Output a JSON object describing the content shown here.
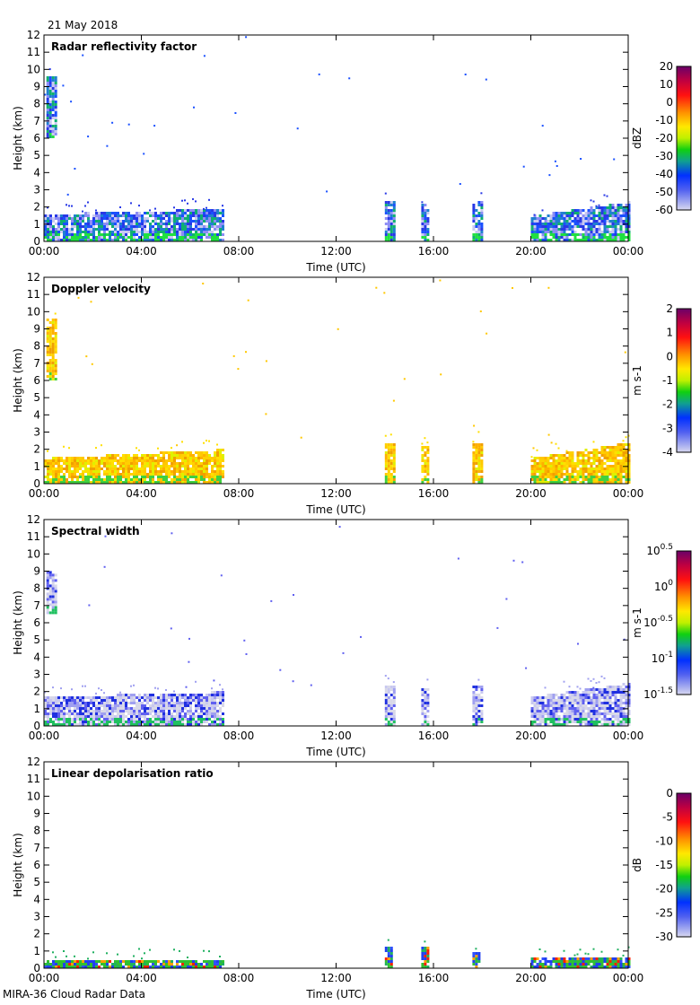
{
  "date": "21 May 2018",
  "footer": "MIRA-36 Cloud Radar Data",
  "chart_data": [
    {
      "type": "heatmap",
      "title": "Radar reflectivity factor",
      "xlabel": "Time (UTC)",
      "ylabel": "Height (km)",
      "xlim": [
        0,
        24
      ],
      "ylim": [
        0,
        12
      ],
      "xticks": [
        "00:00",
        "04:00",
        "08:00",
        "12:00",
        "16:00",
        "20:00",
        "00:00"
      ],
      "yticks": [
        "0",
        "1",
        "2",
        "3",
        "4",
        "5",
        "6",
        "7",
        "8",
        "9",
        "10",
        "11",
        "12"
      ],
      "colorbar": {
        "label": "dBZ",
        "ticks": [
          "20",
          "10",
          "0",
          "-10",
          "-20",
          "-30",
          "-40",
          "-50",
          "-60"
        ],
        "range": [
          -60,
          20
        ]
      },
      "palette": [
        "#c8c8f0",
        "#8c8cf5",
        "#2838e6",
        "#1a50ff",
        "#2080d0",
        "#10b070",
        "#20e040"
      ],
      "echoes": [
        {
          "t": [
            0,
            7.33
          ],
          "h": [
            0,
            1.5
          ],
          "h_end": 1.8
        },
        {
          "t": [
            0.1,
            0.5
          ],
          "h": [
            6,
            9.5
          ]
        },
        {
          "t": [
            14.0,
            14.35
          ],
          "h": [
            0,
            2.3
          ]
        },
        {
          "t": [
            15.5,
            15.8
          ],
          "h": [
            0,
            2.1
          ]
        },
        {
          "t": [
            17.6,
            17.95
          ],
          "h": [
            0,
            2.3
          ]
        },
        {
          "t": [
            20.0,
            24
          ],
          "h": [
            0,
            1.4
          ],
          "h_end": 2.2
        }
      ]
    },
    {
      "type": "heatmap",
      "title": "Doppler velocity",
      "xlabel": "Time (UTC)",
      "ylabel": "Height (km)",
      "xlim": [
        0,
        24
      ],
      "ylim": [
        0,
        12
      ],
      "xticks": [
        "00:00",
        "04:00",
        "08:00",
        "12:00",
        "16:00",
        "20:00",
        "00:00"
      ],
      "yticks": [
        "0",
        "1",
        "2",
        "3",
        "4",
        "5",
        "6",
        "7",
        "8",
        "9",
        "10",
        "11",
        "12"
      ],
      "colorbar": {
        "label": "m s-1",
        "ticks": [
          "2",
          "1",
          "0",
          "-1",
          "-2",
          "-3",
          "-4"
        ],
        "range": [
          -4,
          2
        ]
      },
      "palette": [
        "#ffd000",
        "#ffb000",
        "#ffe000",
        "#ffc800",
        "#f0a000",
        "#e0f000",
        "#40d040"
      ],
      "echoes": [
        {
          "t": [
            0,
            7.33
          ],
          "h": [
            0,
            1.4
          ],
          "h_end": 1.9
        },
        {
          "t": [
            0.1,
            0.5
          ],
          "h": [
            6,
            9.5
          ]
        },
        {
          "t": [
            14.0,
            14.35
          ],
          "h": [
            0,
            2.3
          ]
        },
        {
          "t": [
            15.5,
            15.8
          ],
          "h": [
            0,
            2.1
          ]
        },
        {
          "t": [
            17.6,
            17.95
          ],
          "h": [
            0,
            2.3
          ]
        },
        {
          "t": [
            20.0,
            24
          ],
          "h": [
            0,
            1.4
          ],
          "h_end": 2.3
        }
      ]
    },
    {
      "type": "heatmap",
      "title": "Spectral width",
      "xlabel": "Time (UTC)",
      "ylabel": "Height (km)",
      "xlim": [
        0,
        24
      ],
      "ylim": [
        0,
        12
      ],
      "xticks": [
        "00:00",
        "04:00",
        "08:00",
        "12:00",
        "16:00",
        "20:00",
        "00:00"
      ],
      "yticks": [
        "0",
        "1",
        "2",
        "3",
        "4",
        "5",
        "6",
        "7",
        "8",
        "9",
        "10",
        "11",
        "12"
      ],
      "colorbar": {
        "label": "m s-1",
        "ticks": [
          "10^0.5",
          "10^0",
          "10^-0.5",
          "10^-1",
          "10^-1.5"
        ],
        "range": [
          -1.5,
          0.5
        ],
        "scale": "log"
      },
      "palette": [
        "#d8d8e8",
        "#c8c8f0",
        "#a0a0f0",
        "#6060f0",
        "#2030e0",
        "#d8d8e8",
        "#20c060"
      ],
      "echoes": [
        {
          "t": [
            0,
            7.33
          ],
          "h": [
            0,
            1.6
          ],
          "h_end": 1.9
        },
        {
          "t": [
            0.1,
            0.5
          ],
          "h": [
            6.5,
            9
          ]
        },
        {
          "t": [
            14.0,
            14.35
          ],
          "h": [
            0,
            2.3
          ]
        },
        {
          "t": [
            15.5,
            15.8
          ],
          "h": [
            0,
            2.1
          ]
        },
        {
          "t": [
            17.6,
            17.95
          ],
          "h": [
            0,
            2.3
          ]
        },
        {
          "t": [
            20.0,
            24
          ],
          "h": [
            0,
            1.6
          ],
          "h_end": 2.4
        }
      ]
    },
    {
      "type": "heatmap",
      "title": "Linear depolarisation ratio",
      "xlabel": "Time (UTC)",
      "ylabel": "Height (km)",
      "xlim": [
        0,
        24
      ],
      "ylim": [
        0,
        12
      ],
      "xticks": [
        "00:00",
        "04:00",
        "08:00",
        "12:00",
        "16:00",
        "20:00",
        "00:00"
      ],
      "yticks": [
        "0",
        "1",
        "2",
        "3",
        "4",
        "5",
        "6",
        "7",
        "8",
        "9",
        "10",
        "11",
        "12"
      ],
      "colorbar": {
        "label": "dB",
        "ticks": [
          "0",
          "-5",
          "-10",
          "-15",
          "-20",
          "-25",
          "-30"
        ],
        "range": [
          -30,
          0
        ]
      },
      "palette": [
        "#2040f0",
        "#3050ff",
        "#20b060",
        "#2040f0",
        "#ff2000",
        "#ffa000",
        "#30c030"
      ],
      "echoes": [
        {
          "t": [
            0,
            7.33
          ],
          "h": [
            0,
            0.4
          ]
        },
        {
          "t": [
            14.0,
            14.3
          ],
          "h": [
            0,
            1.2
          ]
        },
        {
          "t": [
            15.5,
            15.8
          ],
          "h": [
            0,
            1.2
          ]
        },
        {
          "t": [
            17.6,
            17.9
          ],
          "h": [
            0,
            0.9
          ]
        },
        {
          "t": [
            20.0,
            24
          ],
          "h": [
            0,
            0.5
          ]
        }
      ]
    }
  ]
}
